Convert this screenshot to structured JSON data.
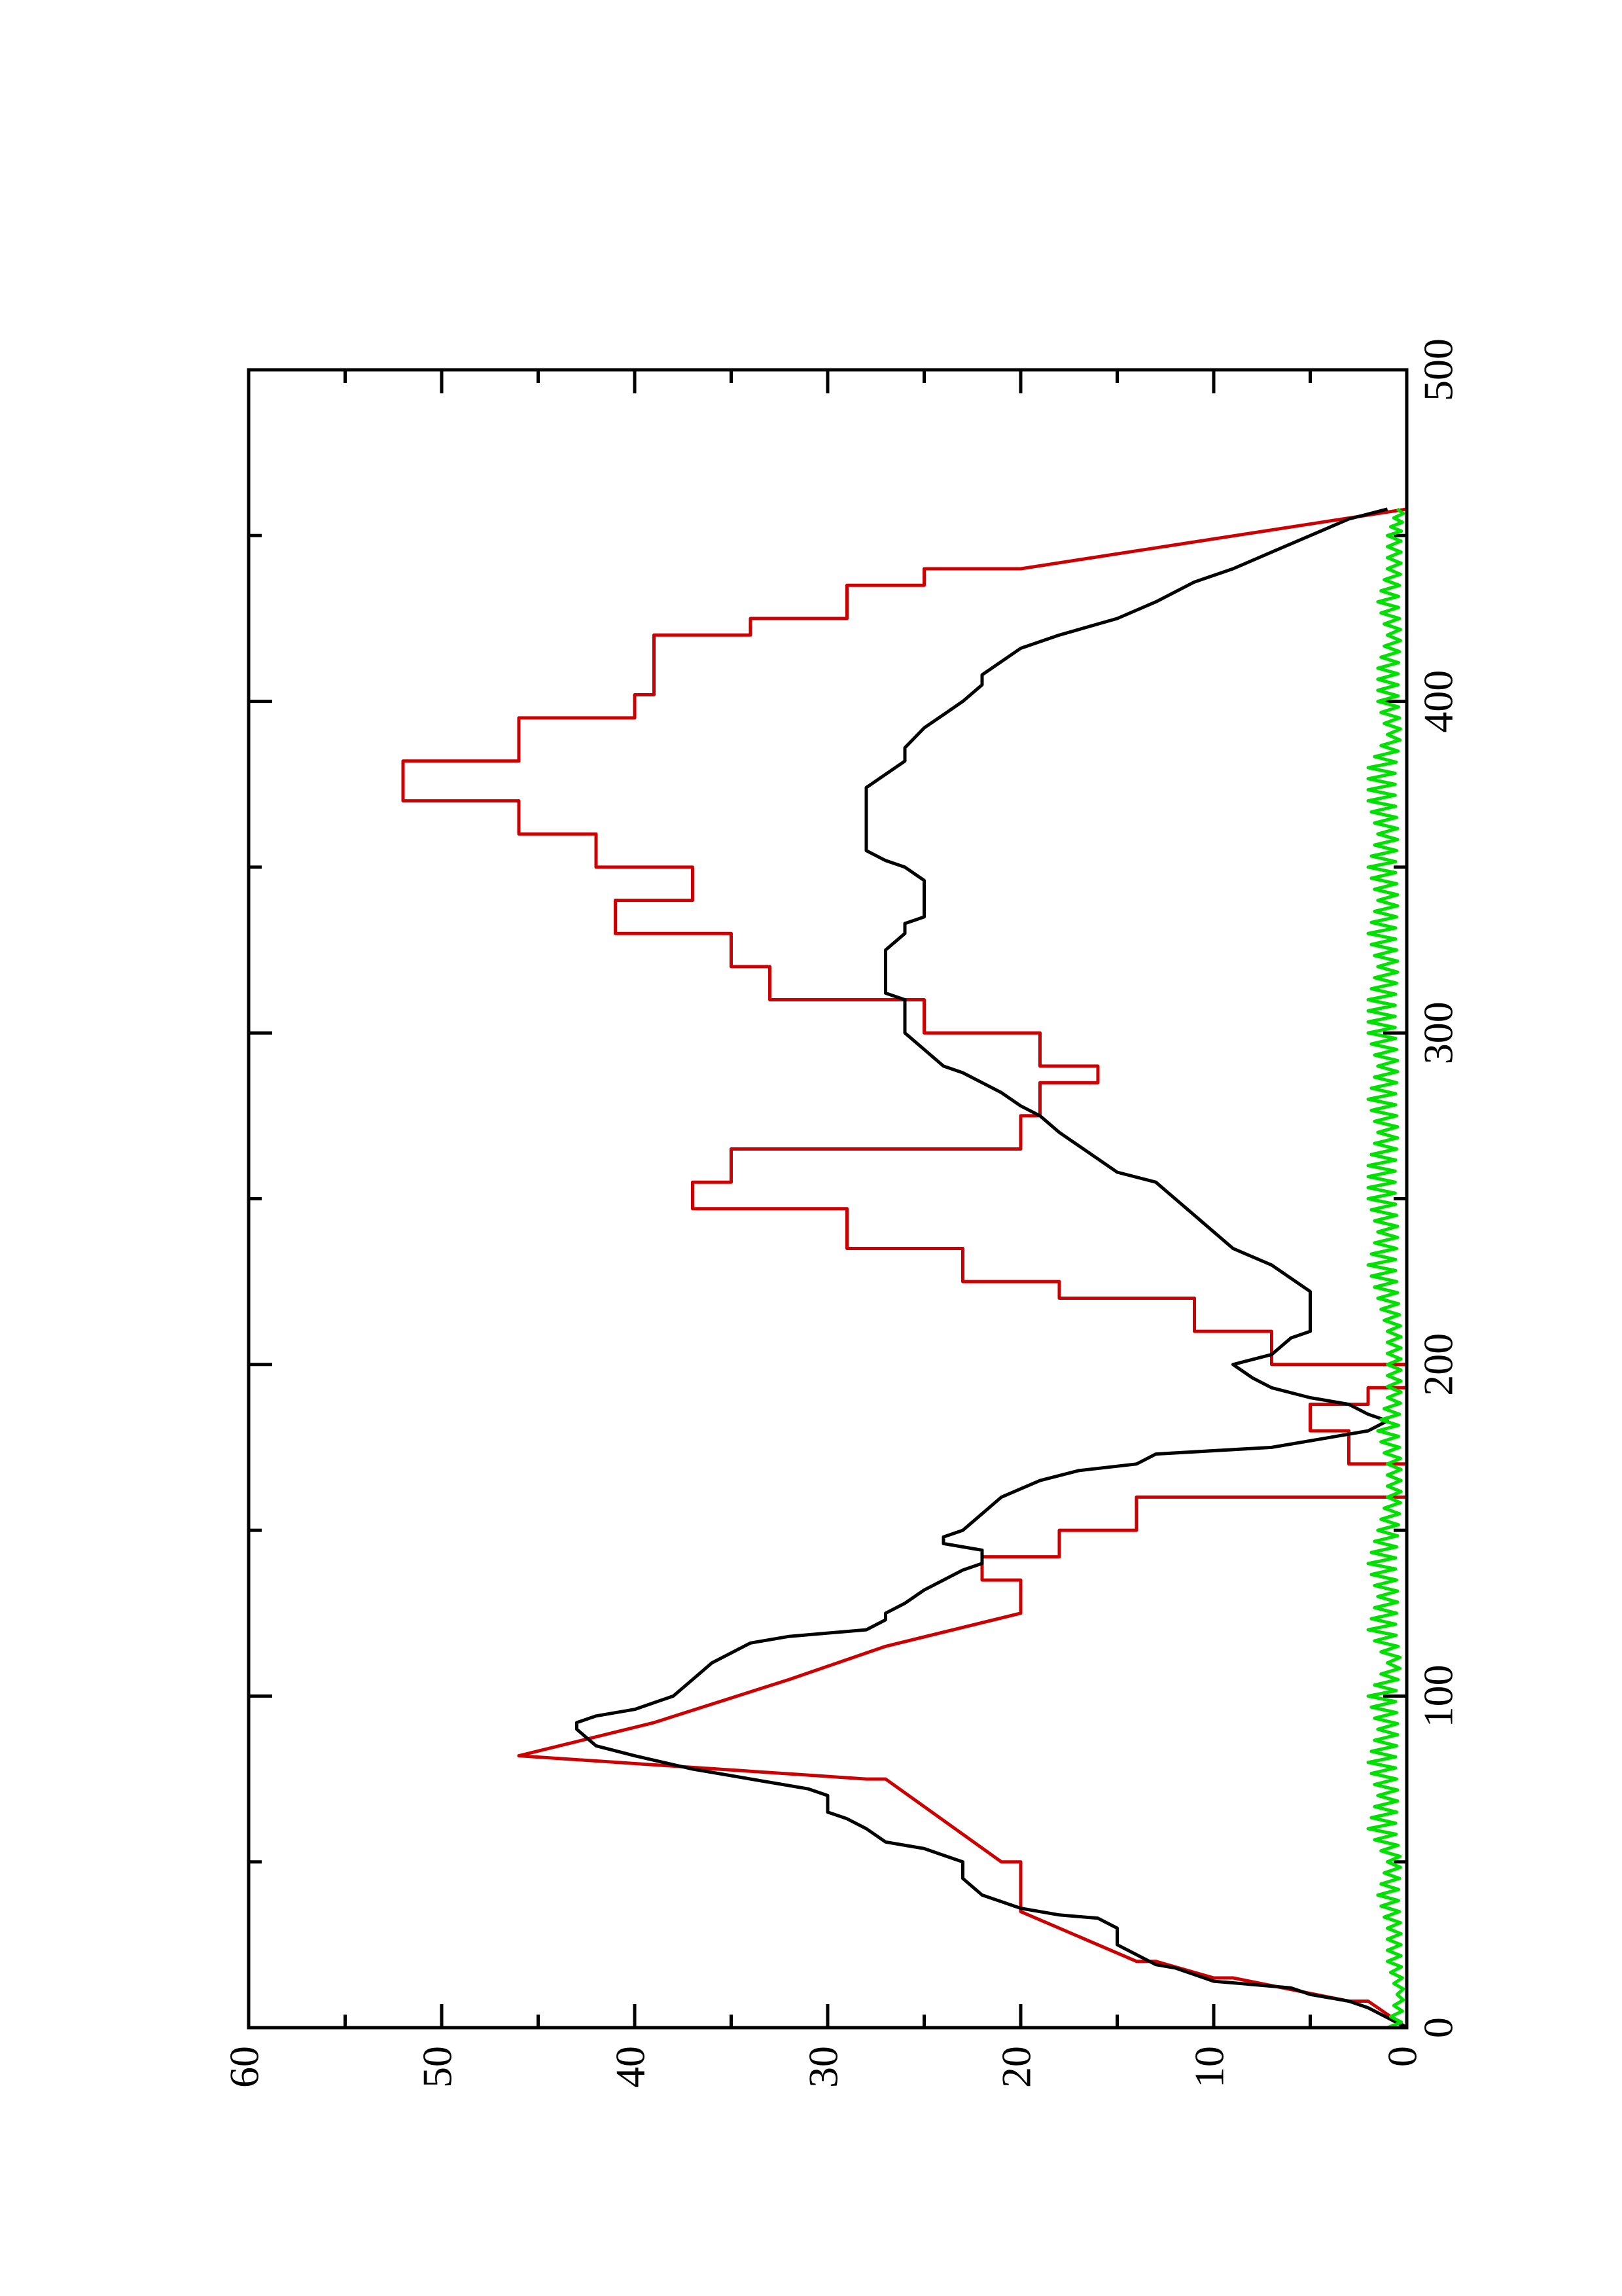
{
  "chart_data": {
    "type": "line",
    "orientation": "rotated-90-ccw",
    "title": "",
    "xlabel": "",
    "ylabel": "",
    "xlim": [
      0,
      500
    ],
    "ylim": [
      0,
      60
    ],
    "xticks_major": [
      0,
      100,
      200,
      300,
      400,
      500
    ],
    "xticks_minor": [
      50,
      150,
      250,
      350,
      450
    ],
    "yticks_major": [
      0,
      10,
      20,
      30,
      40,
      50,
      60
    ],
    "yticks_minor": [
      5,
      15,
      25,
      35,
      45,
      55
    ],
    "x_tick_labels": [
      "0",
      "100",
      "200",
      "300",
      "400",
      "500"
    ],
    "y_tick_labels": [
      "0",
      "10",
      "20",
      "30",
      "40",
      "50",
      "60"
    ],
    "grid": false,
    "legend": "none",
    "series": [
      {
        "color": "#cc0000",
        "x": [
          0,
          8,
          8,
          15,
          15,
          20,
          20,
          35,
          35,
          50,
          50,
          75,
          75,
          82,
          82,
          92,
          92,
          105,
          105,
          115,
          115,
          125,
          125,
          135,
          135,
          142,
          142,
          150,
          150,
          160,
          160,
          170,
          170,
          180,
          180,
          188,
          188,
          193,
          193,
          200,
          200,
          210,
          210,
          220,
          220,
          225,
          225,
          235,
          235,
          247,
          247,
          255,
          255,
          265,
          265,
          275,
          275,
          285,
          285,
          290,
          290,
          300,
          300,
          310,
          310,
          320,
          320,
          330,
          330,
          340,
          340,
          350,
          350,
          360,
          360,
          370,
          370,
          378,
          378,
          382,
          382,
          395,
          395,
          402,
          402,
          420,
          420,
          425,
          425,
          435,
          435,
          440,
          440,
          458
        ],
        "y": [
          0,
          2,
          3,
          9,
          10,
          13,
          14,
          20,
          20,
          20,
          21,
          27,
          28,
          46,
          46,
          39,
          39,
          32,
          32,
          27,
          27,
          20,
          20,
          20,
          22,
          22,
          18,
          18,
          14,
          14,
          0,
          0,
          3,
          3,
          5,
          5,
          2,
          2,
          0,
          0,
          7,
          7,
          11,
          11,
          18,
          18,
          23,
          23,
          29,
          29,
          37,
          37,
          35,
          35,
          20,
          20,
          19,
          19,
          16,
          16,
          19,
          19,
          25,
          25,
          33,
          33,
          35,
          35,
          41,
          41,
          37,
          37,
          42,
          42,
          46,
          46,
          52,
          52,
          52,
          52,
          46,
          46,
          40,
          40,
          39,
          39,
          34,
          34,
          29,
          29,
          25,
          25,
          20,
          0
        ]
      },
      {
        "color": "#000000",
        "x": [
          0,
          3,
          6,
          8,
          9,
          10,
          12,
          13,
          14,
          16,
          18,
          19,
          22,
          25,
          30,
          33,
          34,
          36,
          40,
          45,
          50,
          52,
          54,
          55,
          56,
          60,
          63,
          65,
          67,
          70,
          72,
          75,
          78,
          82,
          85,
          90,
          92,
          94,
          96,
          98,
          100,
          105,
          110,
          113,
          116,
          118,
          120,
          123,
          125,
          128,
          132,
          135,
          138,
          140,
          142,
          144,
          146,
          148,
          150,
          155,
          160,
          165,
          168,
          170,
          173,
          175,
          178,
          180,
          183,
          185,
          188,
          190,
          193,
          196,
          200,
          203,
          208,
          210,
          213,
          215,
          218,
          222,
          226,
          230,
          235,
          240,
          245,
          250,
          255,
          258,
          262,
          266,
          270,
          275,
          278,
          282,
          285,
          288,
          290,
          295,
          300,
          305,
          310,
          312,
          318,
          325,
          330,
          333,
          335,
          338,
          342,
          346,
          350,
          352,
          355,
          360,
          363,
          366,
          370,
          374,
          378,
          382,
          386,
          392,
          396,
          400,
          405,
          408,
          412,
          416,
          420,
          425,
          430,
          436,
          440,
          445,
          450,
          455,
          458
        ],
        "y": [
          0,
          1,
          2,
          3,
          4,
          5,
          6,
          8,
          10,
          11,
          12,
          13,
          14,
          15,
          15,
          16,
          18,
          20,
          22,
          23,
          23,
          24,
          25,
          26,
          27,
          28,
          29,
          30,
          30,
          30,
          31,
          34,
          37,
          40,
          42,
          43,
          43,
          42,
          40,
          39,
          38,
          37,
          36,
          35,
          34,
          32,
          28,
          27,
          27,
          26,
          25,
          24,
          23,
          22,
          22,
          22,
          24,
          24,
          23,
          22,
          21,
          19,
          17,
          14,
          13,
          7,
          4,
          2,
          1,
          2,
          3,
          5,
          7,
          8,
          9,
          7,
          6,
          5,
          5,
          5,
          5,
          5,
          6,
          7,
          9,
          10,
          11,
          12,
          13,
          15,
          16,
          17,
          18,
          19,
          20,
          21,
          22,
          23,
          24,
          25,
          26,
          26,
          26,
          27,
          27,
          27,
          26,
          26,
          25,
          25,
          25,
          25,
          26,
          27,
          28,
          28,
          28,
          28,
          28,
          28,
          27,
          26,
          26,
          25,
          24,
          23,
          22,
          22,
          21,
          20,
          18,
          15,
          13,
          11,
          9,
          7,
          5,
          3,
          1
        ]
      },
      {
        "color": "#00e000",
        "kind": "noise",
        "x": [
          0,
          10,
          20,
          30,
          40,
          50,
          60,
          70,
          80,
          90,
          100,
          110,
          120,
          130,
          140,
          150,
          160,
          170,
          180,
          190,
          200,
          210,
          220,
          230,
          240,
          250,
          260,
          270,
          280,
          290,
          300,
          310,
          320,
          330,
          340,
          350,
          360,
          370,
          380,
          390,
          400,
          410,
          420,
          430,
          440,
          450,
          458
        ],
        "y": [
          1,
          0.5,
          1,
          1,
          1.5,
          1,
          2,
          1.5,
          2,
          1.5,
          2,
          1,
          2,
          1.5,
          2,
          1.5,
          1,
          1,
          1.5,
          1,
          1,
          1,
          1.5,
          2,
          1.5,
          2,
          2,
          1.5,
          2,
          1.5,
          2,
          2,
          1.5,
          2,
          1.5,
          2,
          1.5,
          2,
          2,
          1,
          1.5,
          1.5,
          1,
          1.5,
          1,
          1,
          0.5
        ]
      }
    ]
  }
}
